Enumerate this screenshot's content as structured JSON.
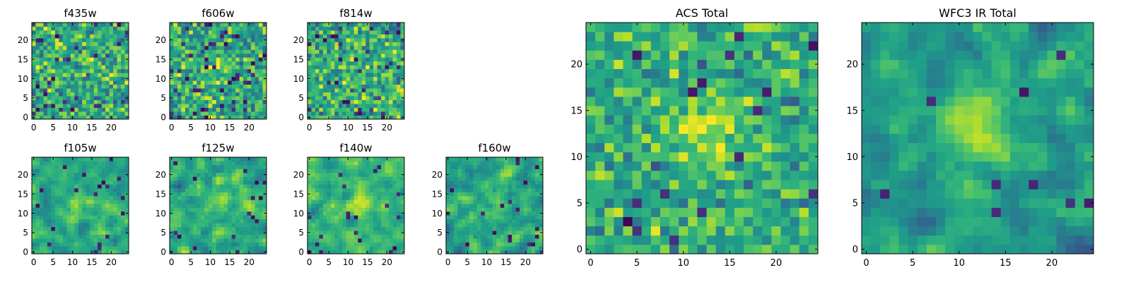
{
  "chart_data": {
    "type": "heatmap",
    "colormap": "viridis",
    "grid": false,
    "panels": [
      {
        "title": "f435w",
        "nx": 25,
        "ny": 25,
        "xticks": [
          0,
          5,
          10,
          15,
          20
        ],
        "yticks": [
          0,
          5,
          10,
          15,
          20
        ],
        "seed": 11,
        "level": 0.62,
        "spread": 0.16,
        "blob": 0.05,
        "dark": 0.06,
        "smooth": 0
      },
      {
        "title": "f606w",
        "nx": 25,
        "ny": 25,
        "xticks": [
          0,
          5,
          10,
          15,
          20
        ],
        "yticks": [
          0,
          5,
          10,
          15,
          20
        ],
        "seed": 23,
        "level": 0.62,
        "spread": 0.16,
        "blob": 0.12,
        "dark": 0.06,
        "smooth": 0
      },
      {
        "title": "f814w",
        "nx": 25,
        "ny": 25,
        "xticks": [
          0,
          5,
          10,
          15,
          20
        ],
        "yticks": [
          0,
          5,
          10,
          15,
          20
        ],
        "seed": 37,
        "level": 0.63,
        "spread": 0.16,
        "blob": 0.06,
        "dark": 0.05,
        "smooth": 0
      },
      {
        "title": "f105w",
        "nx": 25,
        "ny": 25,
        "xticks": [
          0,
          5,
          10,
          15,
          20
        ],
        "yticks": [
          0,
          5,
          10,
          15,
          20
        ],
        "seed": 41,
        "level": 0.6,
        "spread": 0.15,
        "blob": 0.2,
        "dark": 0.03,
        "smooth": 1
      },
      {
        "title": "f125w",
        "nx": 25,
        "ny": 25,
        "xticks": [
          0,
          5,
          10,
          15,
          20
        ],
        "yticks": [
          0,
          5,
          10,
          15,
          20
        ],
        "seed": 53,
        "level": 0.62,
        "spread": 0.15,
        "blob": 0.12,
        "dark": 0.03,
        "smooth": 1
      },
      {
        "title": "f140w",
        "nx": 25,
        "ny": 25,
        "xticks": [
          0,
          5,
          10,
          15,
          20
        ],
        "yticks": [
          0,
          5,
          10,
          15,
          20
        ],
        "seed": 67,
        "level": 0.65,
        "spread": 0.14,
        "blob": 0.2,
        "dark": 0.03,
        "smooth": 1
      },
      {
        "title": "f160w",
        "nx": 25,
        "ny": 25,
        "xticks": [
          0,
          5,
          10,
          15,
          20
        ],
        "yticks": [
          0,
          5,
          10,
          15,
          20
        ],
        "seed": 79,
        "level": 0.6,
        "spread": 0.16,
        "blob": 0.1,
        "dark": 0.04,
        "smooth": 1
      },
      {
        "title": "ACS Total",
        "nx": 25,
        "ny": 25,
        "xticks": [
          0,
          5,
          10,
          15,
          20
        ],
        "yticks": [
          0,
          5,
          10,
          15,
          20
        ],
        "seed": 97,
        "level": 0.63,
        "spread": 0.13,
        "blob": 0.3,
        "dark": 0.025,
        "smooth": 0
      },
      {
        "title": "WFC3 IR Total",
        "nx": 25,
        "ny": 25,
        "xticks": [
          0,
          5,
          10,
          15,
          20
        ],
        "yticks": [
          0,
          5,
          10,
          15,
          20
        ],
        "seed": 113,
        "level": 0.55,
        "spread": 0.14,
        "blob": 0.35,
        "dark": 0.02,
        "smooth": 1
      }
    ]
  }
}
